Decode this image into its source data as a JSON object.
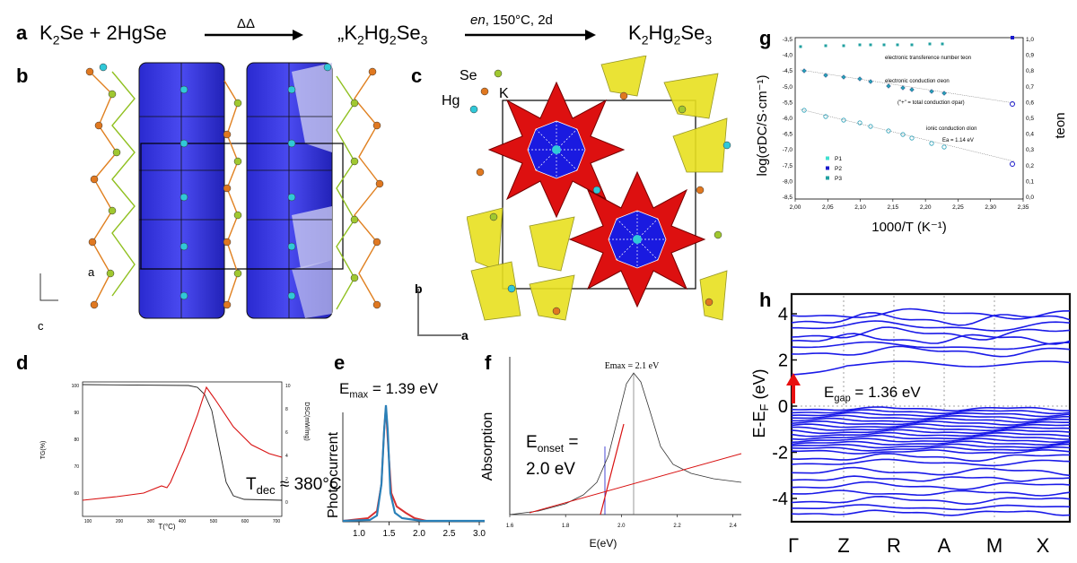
{
  "panel_labels": {
    "a": "a",
    "b": "b",
    "c": "c",
    "d": "d",
    "e": "e",
    "f": "f",
    "g": "g",
    "h": "h"
  },
  "reaction": {
    "reactants": "K2Se + 2HgSe",
    "step1_condition": "ΔΔ",
    "intermediate": "„K2Hg2Se3",
    "step2_condition": "en, 150°C, 2d",
    "product": "K2Hg2Se3"
  },
  "panel_b": {
    "axis_a": "a",
    "axis_c": "c"
  },
  "panel_c": {
    "atom_se": "Se",
    "atom_hg": "Hg",
    "atom_k": "K",
    "axis_b": "b",
    "axis_a": "a"
  },
  "panel_d": {
    "ylabel": "TG(%)",
    "xlabel": "T(°C)",
    "y2label": "DSC(mW/mg)",
    "annotation": "Tdec ≈ 380°C",
    "x_ticks": [
      "100",
      "200",
      "300",
      "400",
      "500",
      "600",
      "700"
    ],
    "y_ticks": [
      "100",
      "90",
      "80",
      "70",
      "60"
    ],
    "y2_ticks": [
      "10",
      "8",
      "6",
      "4",
      "2",
      "0"
    ]
  },
  "panel_e": {
    "annotation": "Emax = 1.39 eV",
    "ylabel": "Photo current",
    "x_ticks": [
      "1.0",
      "1.5",
      "2.0",
      "2.5",
      "3.0"
    ]
  },
  "panel_f": {
    "annotation_max": "Emax = 2.1 eV",
    "annotation_onset_1": "Eonset =",
    "annotation_onset_2": "2.0 eV",
    "ylabel": "Absorption",
    "xlabel": "E(eV)",
    "x_ticks": [
      "1.6",
      "1.8",
      "2.0",
      "2.2",
      "2.4"
    ]
  },
  "panel_g": {
    "ylabel": "log(σDC/S·cm⁻¹)",
    "y2label": "teon",
    "xlabel": "1000/T (K⁻¹)",
    "label_teon": "electronic transference number teon",
    "label_econd": "electronic conduction σeon",
    "label_total": "(\"+\" = total conduction σpar)",
    "label_ionic": "ionic conduction σion",
    "label_ea": "Ea = 1.14 eV",
    "legend": [
      "P1",
      "P2",
      "P3"
    ],
    "legend_colors": [
      "#40e0d0",
      "#1a1acc",
      "#20a0a0"
    ],
    "x_ticks": [
      "2,00",
      "2,05",
      "2,10",
      "2,15",
      "2,20",
      "2,25",
      "2,30",
      "2,35"
    ],
    "y_ticks": [
      "-3,5",
      "-4,0",
      "-4,5",
      "-5,0",
      "-5,5",
      "-6,0",
      "-6,5",
      "-7,0",
      "-7,5",
      "-8,0",
      "-8,5"
    ],
    "y2_ticks": [
      "1,0",
      "0,9",
      "0,8",
      "0,7",
      "0,6",
      "0,5",
      "0,4",
      "0,3",
      "0,2",
      "0,1",
      "0,0"
    ]
  },
  "panel_h": {
    "ylabel": "E-EF (eV)",
    "annotation": "Egap = 1.36 eV",
    "y_ticks": [
      "4",
      "2",
      "0",
      "-2",
      "-4"
    ],
    "k_points": [
      "Γ",
      "Z",
      "R",
      "A",
      "M",
      "X"
    ]
  }
}
